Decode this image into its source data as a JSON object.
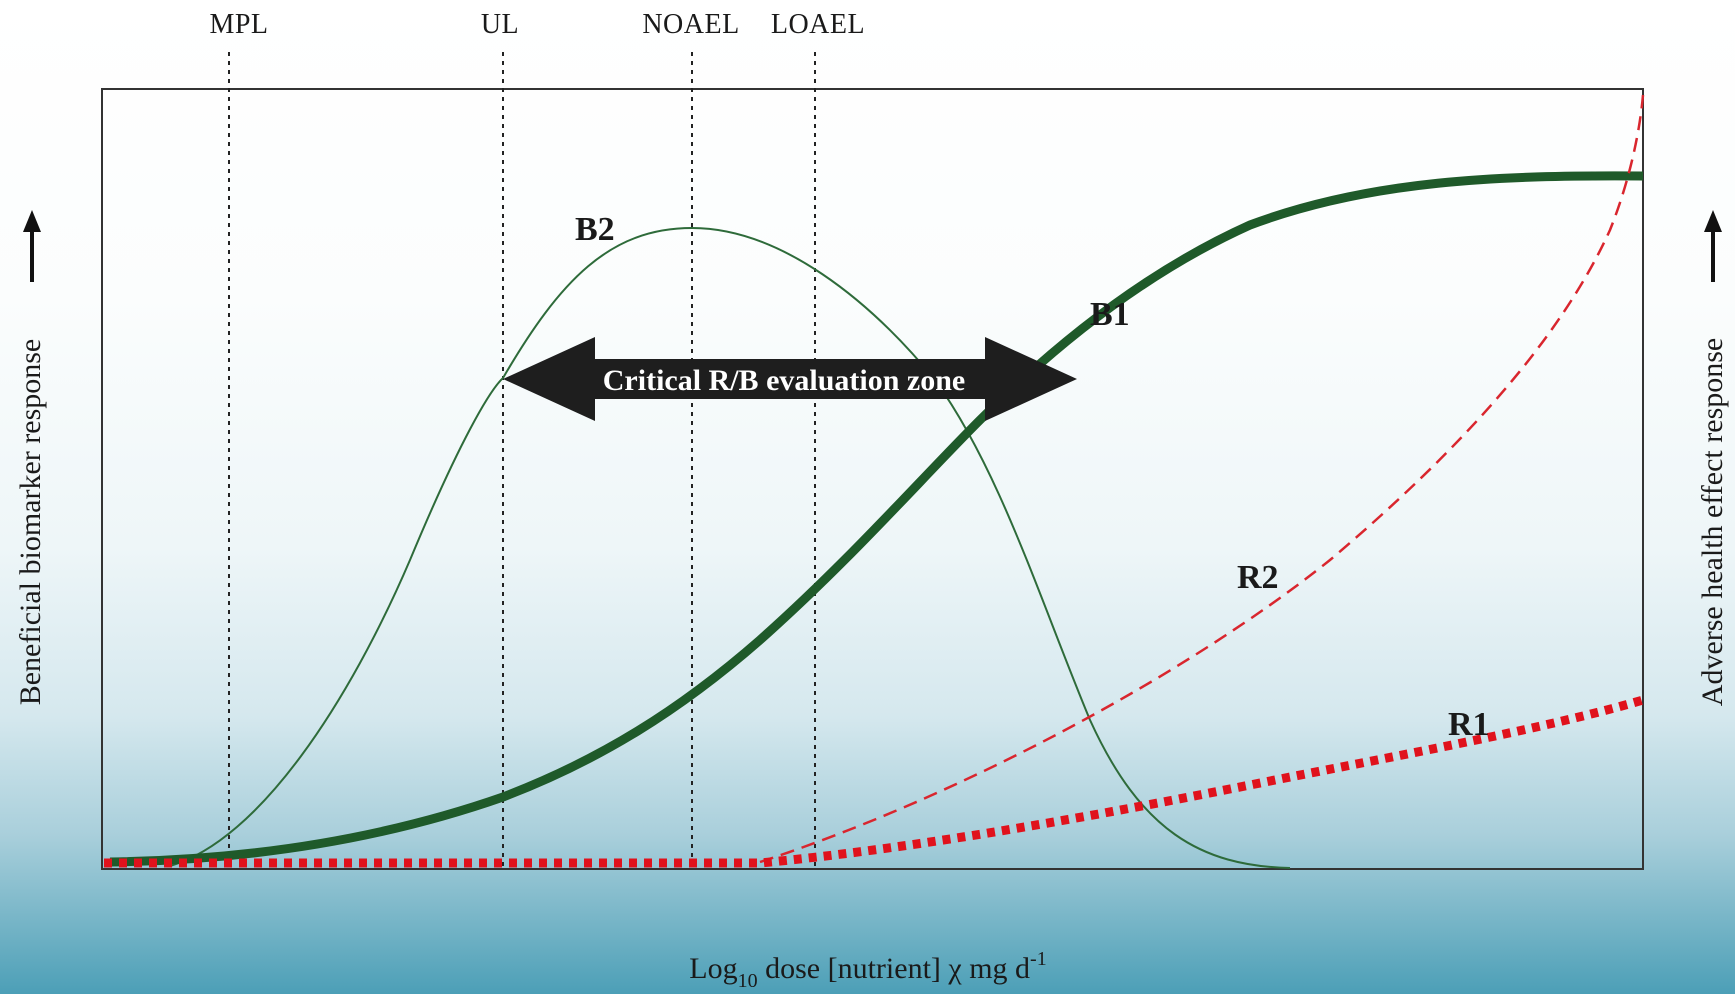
{
  "reference_lines": [
    {
      "label": "MPL"
    },
    {
      "label": "UL"
    },
    {
      "label": "NOAEL"
    },
    {
      "label": "LOAEL"
    }
  ],
  "curves": {
    "b2": {
      "label": "B2",
      "color": "#2e6b3a"
    },
    "b1": {
      "label": "B1",
      "color": "#1f5a2a"
    },
    "r2": {
      "label": "R2",
      "color": "#d9262e"
    },
    "r1": {
      "label": "R1",
      "color": "#e0121c"
    }
  },
  "zone": {
    "label": "Critical R/B evaluation zone",
    "color": "#1e1e1e"
  },
  "axes": {
    "left_label": "Beneficial biomarker response",
    "right_label": "Adverse health effect response",
    "x_label": {
      "prefix": "Log",
      "subscript": "10",
      "middle": " dose [nutrient] χ mg d",
      "superscript": "-1"
    }
  }
}
